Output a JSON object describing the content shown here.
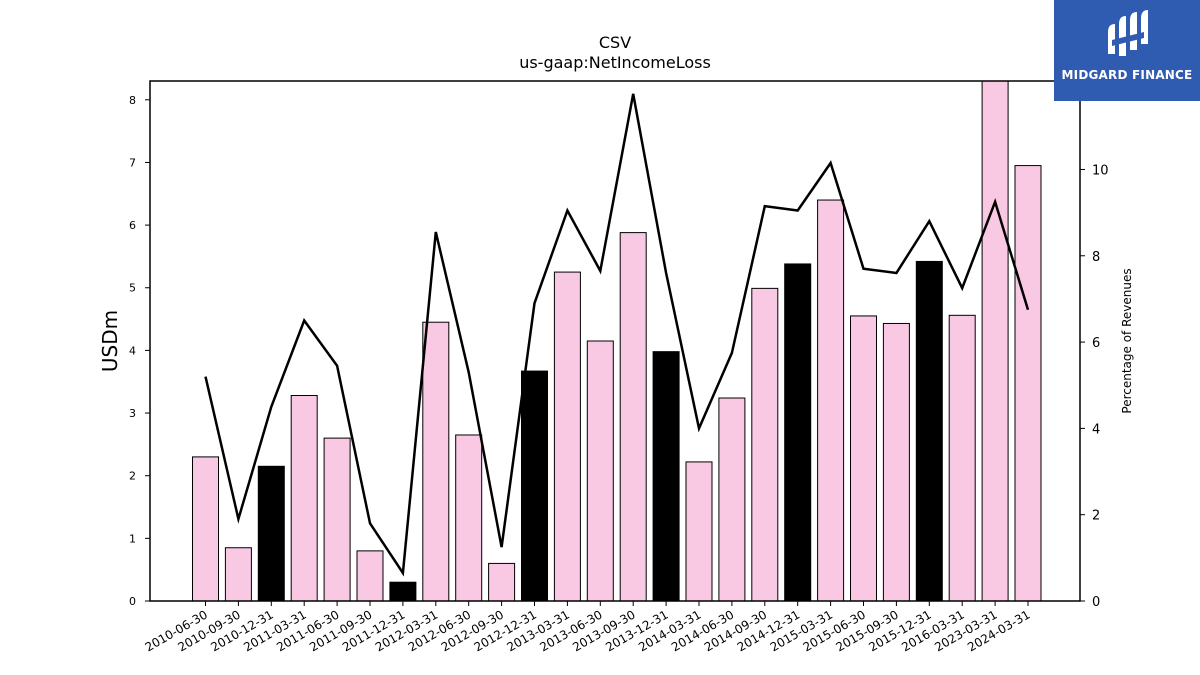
{
  "logo": {
    "text": "MIDGARD FINANCE",
    "icon": "midgard-logo-icon",
    "background": "#2f5bb0"
  },
  "chart_data": {
    "type": "bar",
    "title": "CSV",
    "subtitle": "us-gaap:NetIncomeLoss",
    "ylabel": "USDm",
    "y2label": "Percentage of Revenues",
    "ylim": [
      0,
      8.3
    ],
    "y2lim": [
      0,
      12.05
    ],
    "yticks": [
      0,
      1,
      2,
      3,
      4,
      5,
      6,
      7,
      8
    ],
    "y2ticks": [
      0,
      2,
      4,
      6,
      8,
      10
    ],
    "grid": false,
    "categories": [
      "2010-06-30",
      "2010-09-30",
      "2010-12-31",
      "2011-03-31",
      "2011-06-30",
      "2011-09-30",
      "2011-12-31",
      "2012-03-31",
      "2012-06-30",
      "2012-09-30",
      "2012-12-31",
      "2013-03-31",
      "2013-06-30",
      "2013-09-30",
      "2013-12-31",
      "2014-03-31",
      "2014-06-30",
      "2014-09-30",
      "2014-12-31",
      "2015-03-31",
      "2015-06-30",
      "2015-09-30",
      "2015-12-31",
      "2016-03-31",
      "2023-03-31",
      "2024-03-31"
    ],
    "series": [
      {
        "kind": "bar",
        "axis": "left",
        "values": [
          2.3,
          0.85,
          2.15,
          3.28,
          2.6,
          0.8,
          0.3,
          4.45,
          2.65,
          0.6,
          3.67,
          5.25,
          4.15,
          5.88,
          3.98,
          2.22,
          3.24,
          4.99,
          5.38,
          6.4,
          4.55,
          4.43,
          5.42,
          4.56,
          8.3,
          6.95
        ],
        "colors": [
          "#f9c9e3",
          "#f9c9e3",
          "#000000",
          "#f9c9e3",
          "#f9c9e3",
          "#f9c9e3",
          "#000000",
          "#f9c9e3",
          "#f9c9e3",
          "#f9c9e3",
          "#000000",
          "#f9c9e3",
          "#f9c9e3",
          "#f9c9e3",
          "#000000",
          "#f9c9e3",
          "#f9c9e3",
          "#f9c9e3",
          "#000000",
          "#f9c9e3",
          "#f9c9e3",
          "#f9c9e3",
          "#000000",
          "#f9c9e3",
          "#f9c9e3",
          "#f9c9e3"
        ]
      },
      {
        "kind": "line",
        "axis": "right",
        "color": "#000000",
        "values": [
          5.2,
          1.9,
          4.5,
          6.5,
          5.45,
          1.8,
          0.65,
          8.55,
          5.3,
          1.25,
          6.9,
          9.05,
          7.65,
          11.75,
          7.6,
          4.0,
          5.75,
          9.15,
          9.05,
          10.15,
          7.7,
          7.6,
          8.8,
          7.25,
          9.25,
          6.75
        ]
      }
    ]
  }
}
